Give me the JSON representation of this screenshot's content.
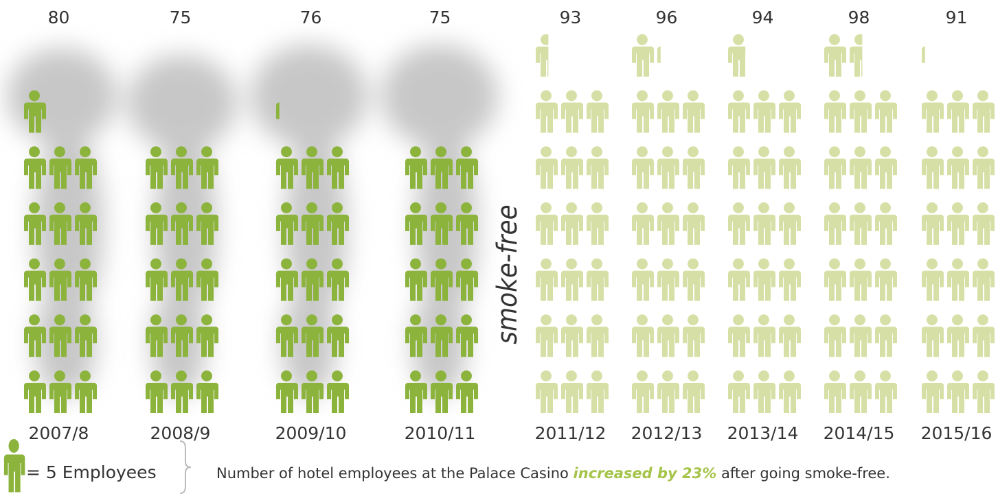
{
  "chart_data": {
    "type": "pictograph",
    "categories": [
      "2007/8",
      "2008/9",
      "2009/10",
      "2010/11",
      "2011/12",
      "2012/13",
      "2013/14",
      "2014/15",
      "2015/16"
    ],
    "values": [
      80,
      75,
      76,
      75,
      93,
      96,
      94,
      98,
      91
    ],
    "colors": [
      "#8cb33c",
      "#8cb33c",
      "#8cb33c",
      "#8cb33c",
      "#d6e0a6",
      "#d6e0a6",
      "#d6e0a6",
      "#d6e0a6",
      "#d6e0a6"
    ],
    "legend": {
      "value": 5,
      "label": "= 5 Employees",
      "color": "#8cb33c"
    },
    "divider_label": "smoke-free",
    "annotation": [
      "Number of hotel employees at the Palace Casino ",
      "increased by 23%",
      " after going smoke-free."
    ]
  }
}
